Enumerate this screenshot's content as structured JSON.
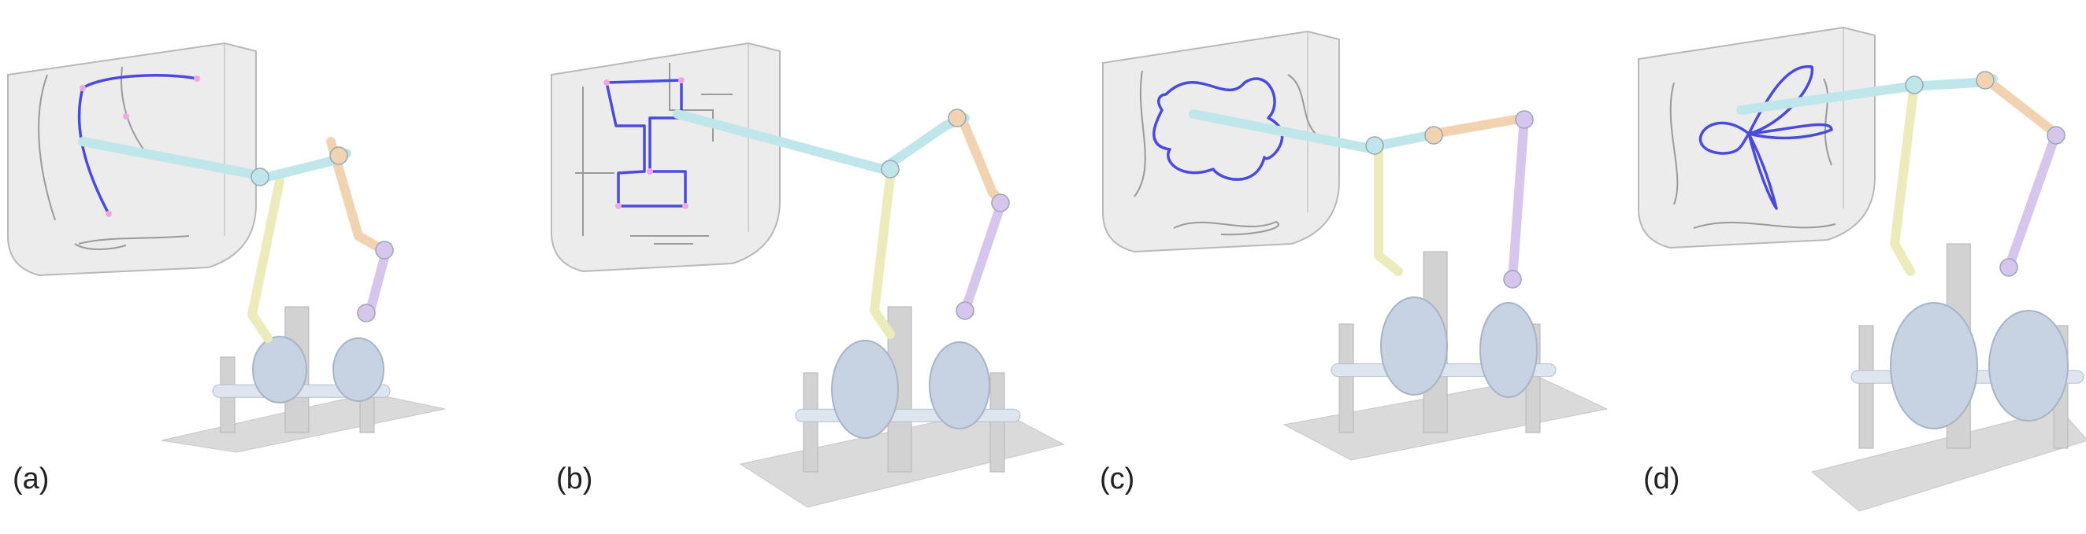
{
  "panels": [
    {
      "label": "(a)",
      "curve": "arc"
    },
    {
      "label": "(b)",
      "curve": "chair"
    },
    {
      "label": "(c)",
      "curve": "blob"
    },
    {
      "label": "(d)",
      "curve": "rose"
    }
  ],
  "colors": {
    "box_face": "#dcdcdc",
    "box_edge": "#b8b8b8",
    "curve": "#4a4ae0",
    "projection": "#9a9a9a",
    "arm_cyan": "#bfe6ea",
    "arm_yellow": "#ecebbb",
    "arm_orange": "#f1d3b2",
    "arm_purple": "#d6c6ee",
    "frame": "#d2d2d2",
    "cam": "#c7d3e3",
    "base": "#dadada"
  }
}
